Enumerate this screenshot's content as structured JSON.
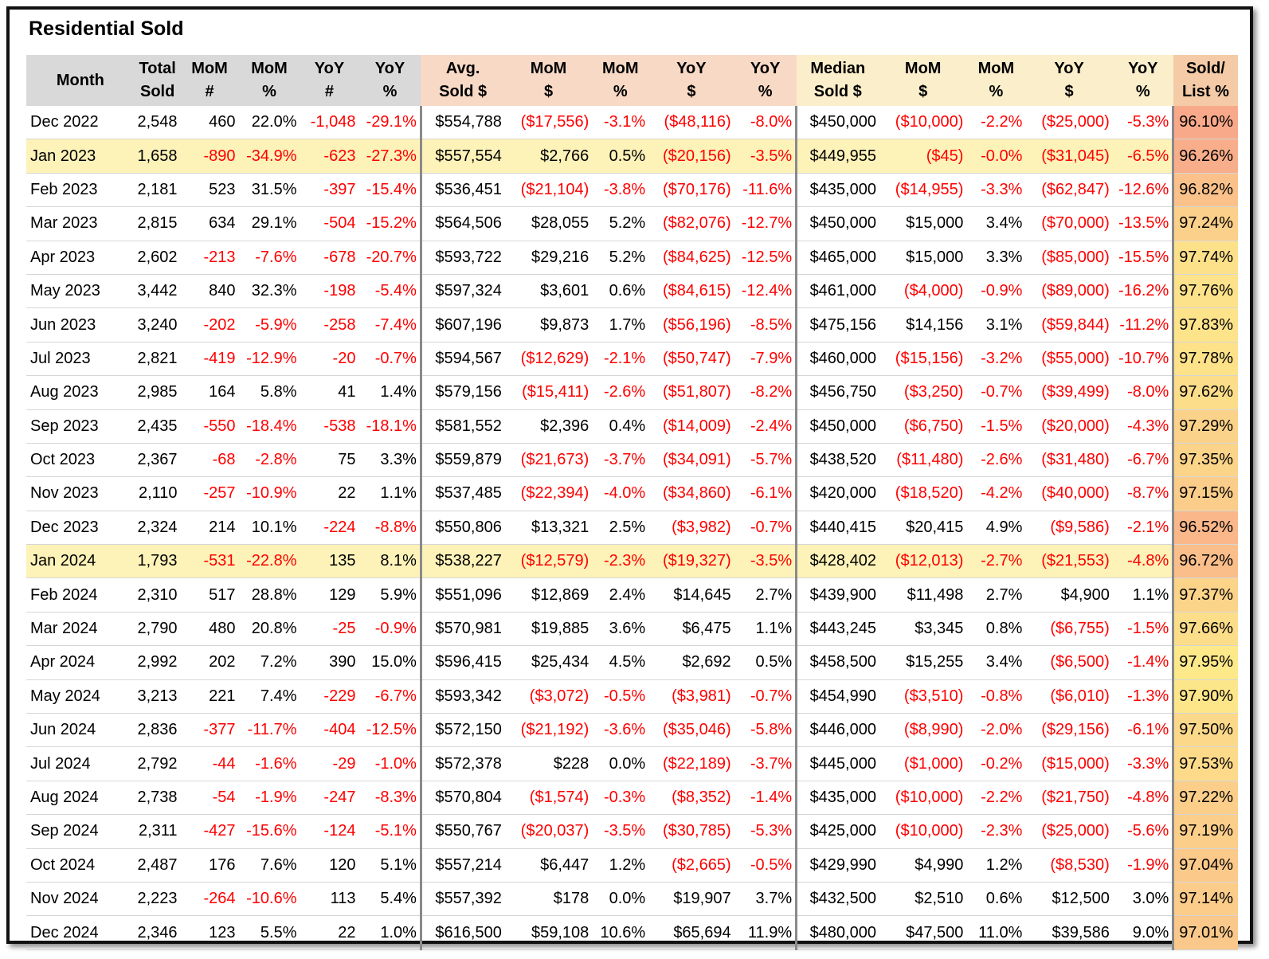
{
  "title": "Residential Sold",
  "columns": [
    {
      "key": "month",
      "label": [
        "Month"
      ]
    },
    {
      "key": "total",
      "label": [
        "Total",
        "Sold"
      ]
    },
    {
      "key": "mom_n",
      "label": [
        "MoM",
        "#"
      ]
    },
    {
      "key": "mom_p",
      "label": [
        "MoM",
        "%"
      ]
    },
    {
      "key": "yoy_n",
      "label": [
        "YoY",
        "#"
      ]
    },
    {
      "key": "yoy_p",
      "label": [
        "YoY",
        "%"
      ]
    },
    {
      "key": "avg",
      "label": [
        "Avg.",
        "Sold $"
      ]
    },
    {
      "key": "avg_mom_d",
      "label": [
        "MoM",
        "$"
      ]
    },
    {
      "key": "avg_mom_p",
      "label": [
        "MoM",
        "%"
      ]
    },
    {
      "key": "avg_yoy_d",
      "label": [
        "YoY",
        "$"
      ]
    },
    {
      "key": "avg_yoy_p",
      "label": [
        "YoY",
        "%"
      ]
    },
    {
      "key": "med",
      "label": [
        "Median",
        "Sold $"
      ]
    },
    {
      "key": "med_mom_d",
      "label": [
        "MoM",
        "$"
      ]
    },
    {
      "key": "med_mom_p",
      "label": [
        "MoM",
        "%"
      ]
    },
    {
      "key": "med_yoy_d",
      "label": [
        "YoY",
        "$"
      ]
    },
    {
      "key": "med_yoy_p",
      "label": [
        "YoY",
        "%"
      ]
    },
    {
      "key": "sold_list",
      "label": [
        "Sold/",
        "List %"
      ]
    }
  ],
  "colors": {
    "negative": "#ff0000",
    "header_count": "#d9d9d9",
    "header_avg": "#f8d9c5",
    "header_median": "#fbeecb",
    "header_sold_list": "#f4cba6",
    "january_highlight": "#fdf2b8",
    "sold_list_scale_low": "#f8a98a",
    "sold_list_scale_high": "#fde88a"
  },
  "highlight_months": [
    "Jan 2023",
    "Jan 2024"
  ],
  "rows": [
    [
      "Dec 2022",
      "2,548",
      "460",
      "22.0%",
      "-1,048",
      "-29.1%",
      "$554,788",
      "($17,556)",
      "-3.1%",
      "($48,116)",
      "-8.0%",
      "$450,000",
      "($10,000)",
      "-2.2%",
      "($25,000)",
      "-5.3%",
      "96.10%"
    ],
    [
      "Jan 2023",
      "1,658",
      "-890",
      "-34.9%",
      "-623",
      "-27.3%",
      "$557,554",
      "$2,766",
      "0.5%",
      "($20,156)",
      "-3.5%",
      "$449,955",
      "($45)",
      "-0.0%",
      "($31,045)",
      "-6.5%",
      "96.26%"
    ],
    [
      "Feb 2023",
      "2,181",
      "523",
      "31.5%",
      "-397",
      "-15.4%",
      "$536,451",
      "($21,104)",
      "-3.8%",
      "($70,176)",
      "-11.6%",
      "$435,000",
      "($14,955)",
      "-3.3%",
      "($62,847)",
      "-12.6%",
      "96.82%"
    ],
    [
      "Mar 2023",
      "2,815",
      "634",
      "29.1%",
      "-504",
      "-15.2%",
      "$564,506",
      "$28,055",
      "5.2%",
      "($82,076)",
      "-12.7%",
      "$450,000",
      "$15,000",
      "3.4%",
      "($70,000)",
      "-13.5%",
      "97.24%"
    ],
    [
      "Apr 2023",
      "2,602",
      "-213",
      "-7.6%",
      "-678",
      "-20.7%",
      "$593,722",
      "$29,216",
      "5.2%",
      "($84,625)",
      "-12.5%",
      "$465,000",
      "$15,000",
      "3.3%",
      "($85,000)",
      "-15.5%",
      "97.74%"
    ],
    [
      "May 2023",
      "3,442",
      "840",
      "32.3%",
      "-198",
      "-5.4%",
      "$597,324",
      "$3,601",
      "0.6%",
      "($84,615)",
      "-12.4%",
      "$461,000",
      "($4,000)",
      "-0.9%",
      "($89,000)",
      "-16.2%",
      "97.76%"
    ],
    [
      "Jun 2023",
      "3,240",
      "-202",
      "-5.9%",
      "-258",
      "-7.4%",
      "$607,196",
      "$9,873",
      "1.7%",
      "($56,196)",
      "-8.5%",
      "$475,156",
      "$14,156",
      "3.1%",
      "($59,844)",
      "-11.2%",
      "97.83%"
    ],
    [
      "Jul 2023",
      "2,821",
      "-419",
      "-12.9%",
      "-20",
      "-0.7%",
      "$594,567",
      "($12,629)",
      "-2.1%",
      "($50,747)",
      "-7.9%",
      "$460,000",
      "($15,156)",
      "-3.2%",
      "($55,000)",
      "-10.7%",
      "97.78%"
    ],
    [
      "Aug 2023",
      "2,985",
      "164",
      "5.8%",
      "41",
      "1.4%",
      "$579,156",
      "($15,411)",
      "-2.6%",
      "($51,807)",
      "-8.2%",
      "$456,750",
      "($3,250)",
      "-0.7%",
      "($39,499)",
      "-8.0%",
      "97.62%"
    ],
    [
      "Sep 2023",
      "2,435",
      "-550",
      "-18.4%",
      "-538",
      "-18.1%",
      "$581,552",
      "$2,396",
      "0.4%",
      "($14,009)",
      "-2.4%",
      "$450,000",
      "($6,750)",
      "-1.5%",
      "($20,000)",
      "-4.3%",
      "97.29%"
    ],
    [
      "Oct 2023",
      "2,367",
      "-68",
      "-2.8%",
      "75",
      "3.3%",
      "$559,879",
      "($21,673)",
      "-3.7%",
      "($34,091)",
      "-5.7%",
      "$438,520",
      "($11,480)",
      "-2.6%",
      "($31,480)",
      "-6.7%",
      "97.35%"
    ],
    [
      "Nov 2023",
      "2,110",
      "-257",
      "-10.9%",
      "22",
      "1.1%",
      "$537,485",
      "($22,394)",
      "-4.0%",
      "($34,860)",
      "-6.1%",
      "$420,000",
      "($18,520)",
      "-4.2%",
      "($40,000)",
      "-8.7%",
      "97.15%"
    ],
    [
      "Dec 2023",
      "2,324",
      "214",
      "10.1%",
      "-224",
      "-8.8%",
      "$550,806",
      "$13,321",
      "2.5%",
      "($3,982)",
      "-0.7%",
      "$440,415",
      "$20,415",
      "4.9%",
      "($9,586)",
      "-2.1%",
      "96.52%"
    ],
    [
      "Jan 2024",
      "1,793",
      "-531",
      "-22.8%",
      "135",
      "8.1%",
      "$538,227",
      "($12,579)",
      "-2.3%",
      "($19,327)",
      "-3.5%",
      "$428,402",
      "($12,013)",
      "-2.7%",
      "($21,553)",
      "-4.8%",
      "96.72%"
    ],
    [
      "Feb 2024",
      "2,310",
      "517",
      "28.8%",
      "129",
      "5.9%",
      "$551,096",
      "$12,869",
      "2.4%",
      "$14,645",
      "2.7%",
      "$439,900",
      "$11,498",
      "2.7%",
      "$4,900",
      "1.1%",
      "97.37%"
    ],
    [
      "Mar 2024",
      "2,790",
      "480",
      "20.8%",
      "-25",
      "-0.9%",
      "$570,981",
      "$19,885",
      "3.6%",
      "$6,475",
      "1.1%",
      "$443,245",
      "$3,345",
      "0.8%",
      "($6,755)",
      "-1.5%",
      "97.66%"
    ],
    [
      "Apr 2024",
      "2,992",
      "202",
      "7.2%",
      "390",
      "15.0%",
      "$596,415",
      "$25,434",
      "4.5%",
      "$2,692",
      "0.5%",
      "$458,500",
      "$15,255",
      "3.4%",
      "($6,500)",
      "-1.4%",
      "97.95%"
    ],
    [
      "May 2024",
      "3,213",
      "221",
      "7.4%",
      "-229",
      "-6.7%",
      "$593,342",
      "($3,072)",
      "-0.5%",
      "($3,981)",
      "-0.7%",
      "$454,990",
      "($3,510)",
      "-0.8%",
      "($6,010)",
      "-1.3%",
      "97.90%"
    ],
    [
      "Jun 2024",
      "2,836",
      "-377",
      "-11.7%",
      "-404",
      "-12.5%",
      "$572,150",
      "($21,192)",
      "-3.6%",
      "($35,046)",
      "-5.8%",
      "$446,000",
      "($8,990)",
      "-2.0%",
      "($29,156)",
      "-6.1%",
      "97.50%"
    ],
    [
      "Jul 2024",
      "2,792",
      "-44",
      "-1.6%",
      "-29",
      "-1.0%",
      "$572,378",
      "$228",
      "0.0%",
      "($22,189)",
      "-3.7%",
      "$445,000",
      "($1,000)",
      "-0.2%",
      "($15,000)",
      "-3.3%",
      "97.53%"
    ],
    [
      "Aug 2024",
      "2,738",
      "-54",
      "-1.9%",
      "-247",
      "-8.3%",
      "$570,804",
      "($1,574)",
      "-0.3%",
      "($8,352)",
      "-1.4%",
      "$435,000",
      "($10,000)",
      "-2.2%",
      "($21,750)",
      "-4.8%",
      "97.22%"
    ],
    [
      "Sep 2024",
      "2,311",
      "-427",
      "-15.6%",
      "-124",
      "-5.1%",
      "$550,767",
      "($20,037)",
      "-3.5%",
      "($30,785)",
      "-5.3%",
      "$425,000",
      "($10,000)",
      "-2.3%",
      "($25,000)",
      "-5.6%",
      "97.19%"
    ],
    [
      "Oct 2024",
      "2,487",
      "176",
      "7.6%",
      "120",
      "5.1%",
      "$557,214",
      "$6,447",
      "1.2%",
      "($2,665)",
      "-0.5%",
      "$429,990",
      "$4,990",
      "1.2%",
      "($8,530)",
      "-1.9%",
      "97.04%"
    ],
    [
      "Nov 2024",
      "2,223",
      "-264",
      "-10.6%",
      "113",
      "5.4%",
      "$557,392",
      "$178",
      "0.0%",
      "$19,907",
      "3.7%",
      "$432,500",
      "$2,510",
      "0.6%",
      "$12,500",
      "3.0%",
      "97.14%"
    ],
    [
      "Dec 2024",
      "2,346",
      "123",
      "5.5%",
      "22",
      "1.0%",
      "$616,500",
      "$59,108",
      "10.6%",
      "$65,694",
      "11.9%",
      "$480,000",
      "$47,500",
      "11.0%",
      "$39,586",
      "9.0%",
      "97.01%"
    ]
  ]
}
